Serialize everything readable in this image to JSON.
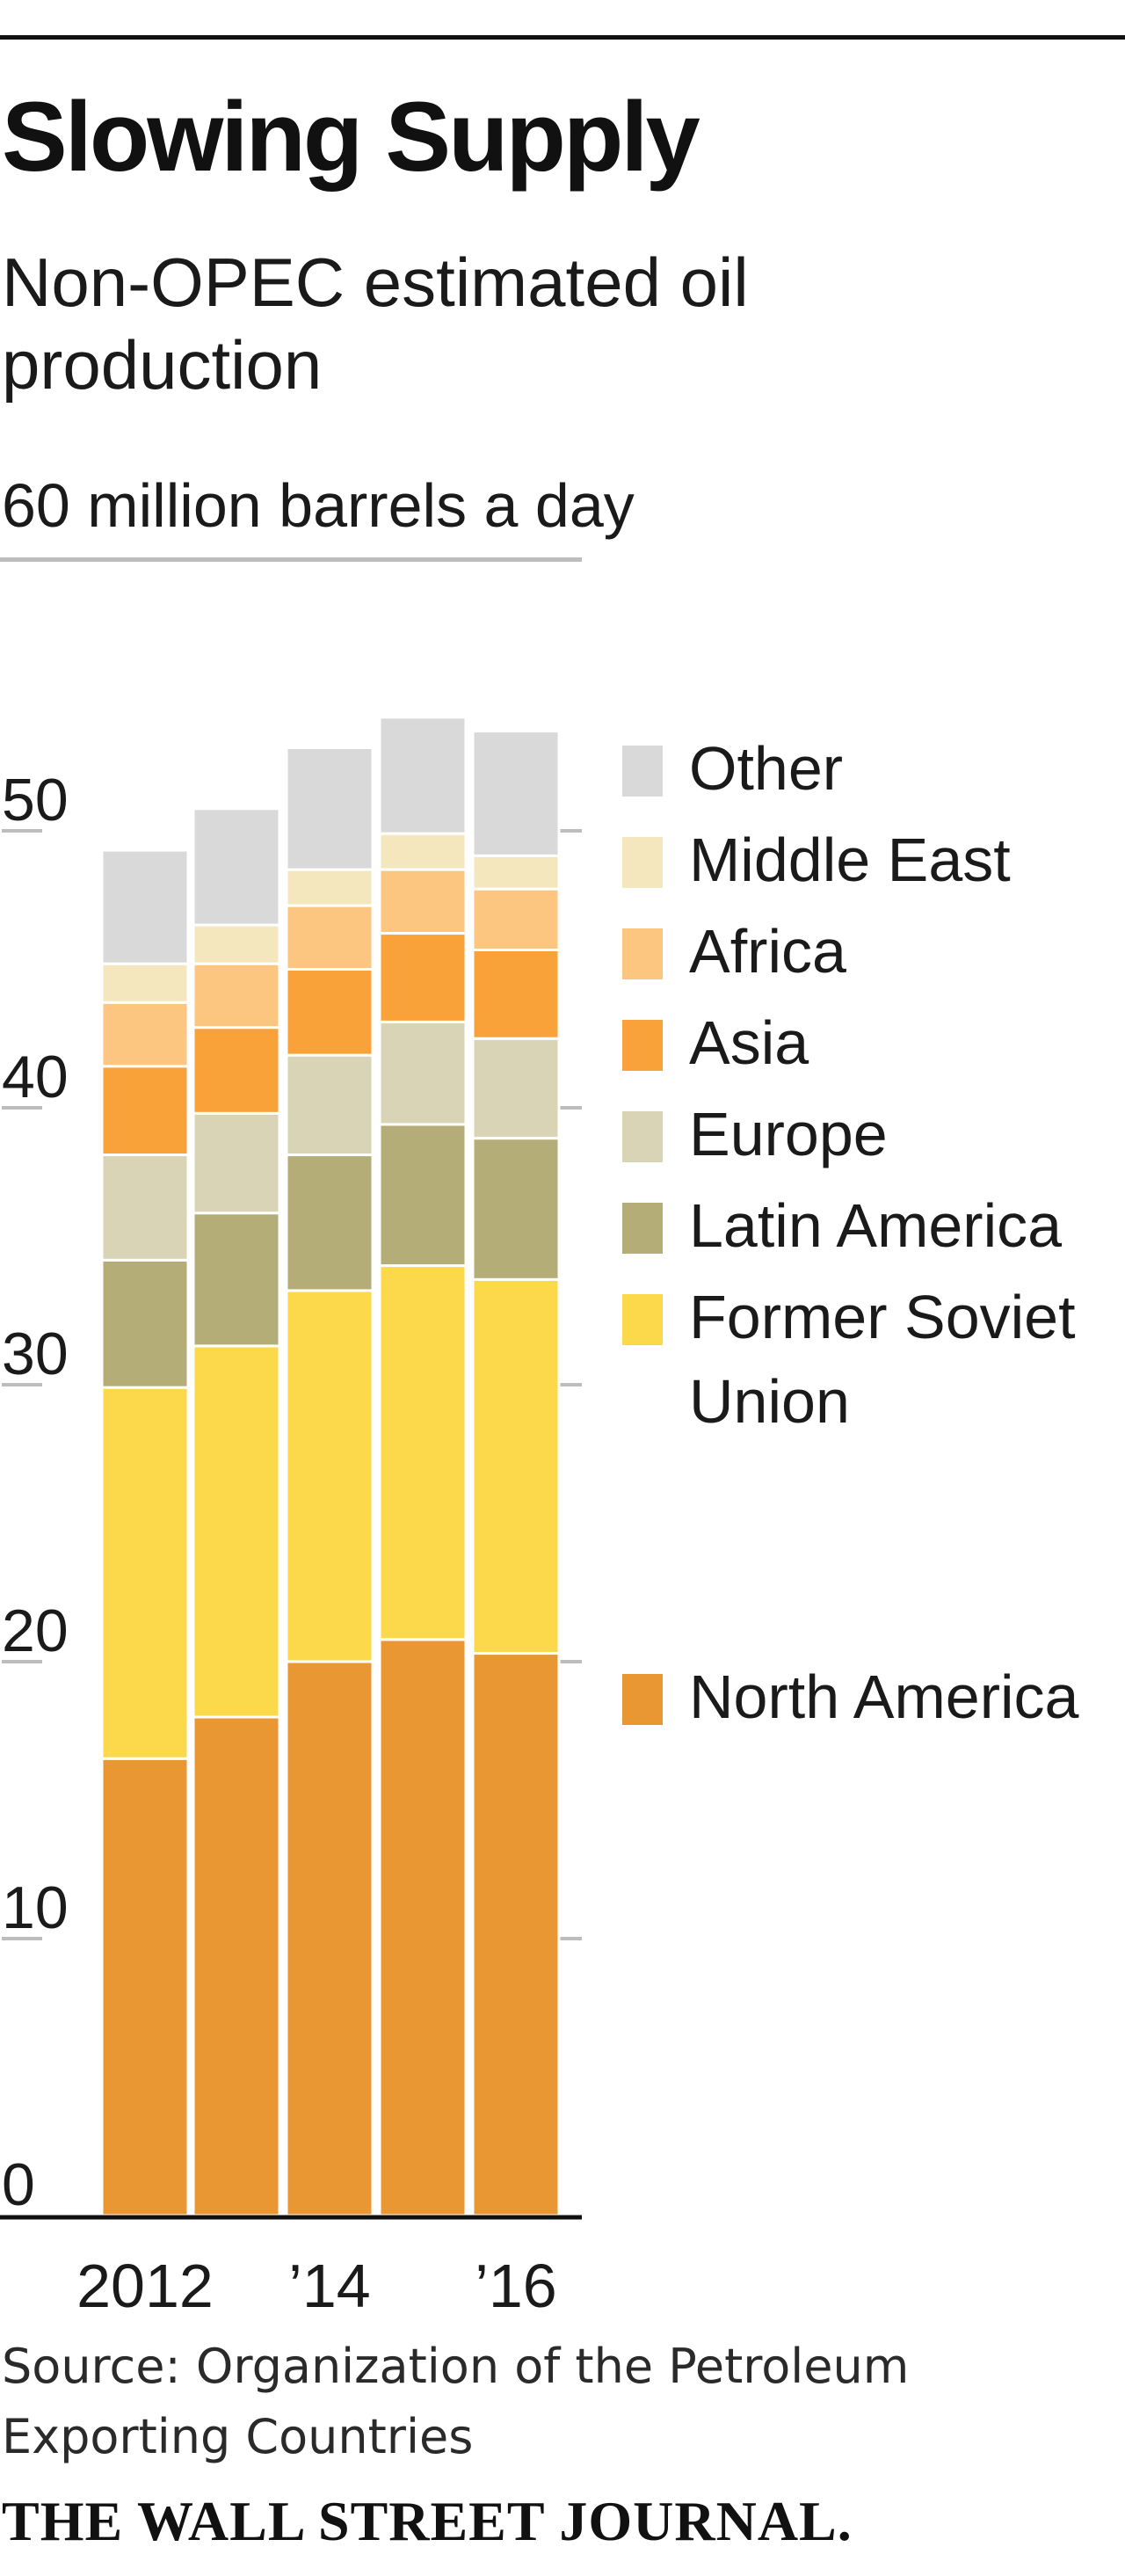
{
  "header": {
    "title": "Slowing Supply",
    "subtitle": "Non-OPEC estimated oil production",
    "unit_label": "60 million barrels a day"
  },
  "footer": {
    "source": "Source: Organization of the Petroleum Exporting Countries",
    "publisher": "THE WALL STREET JOURNAL."
  },
  "chart_data": {
    "type": "bar",
    "stacked": true,
    "title": "Slowing Supply",
    "subtitle": "Non-OPEC estimated oil production",
    "ylabel": "60 million barrels a day",
    "xlabel": "",
    "categories": [
      "2012",
      "2013",
      "2014",
      "2015",
      "2016"
    ],
    "x_tick_labels": [
      "2012",
      "",
      "’14",
      "",
      "’16"
    ],
    "ylim": [
      0,
      60
    ],
    "yticks": [
      0,
      10,
      20,
      30,
      40,
      50
    ],
    "grid": false,
    "legend_position": "right",
    "series": [
      {
        "name": "North America",
        "color": "#e89733",
        "values": [
          16.5,
          18.0,
          20.0,
          20.8,
          20.3
        ]
      },
      {
        "name": "Former Soviet Union",
        "color": "#fcd94b",
        "values": [
          13.4,
          13.4,
          13.4,
          13.5,
          13.5
        ]
      },
      {
        "name": "Latin America",
        "color": "#b5ad77",
        "values": [
          4.6,
          4.8,
          4.9,
          5.1,
          5.1
        ]
      },
      {
        "name": "Europe",
        "color": "#d9d4b5",
        "values": [
          3.8,
          3.6,
          3.6,
          3.7,
          3.6
        ]
      },
      {
        "name": "Asia",
        "color": "#f9a239",
        "values": [
          3.2,
          3.1,
          3.1,
          3.2,
          3.2
        ]
      },
      {
        "name": "Africa",
        "color": "#fcc681",
        "values": [
          2.3,
          2.3,
          2.3,
          2.3,
          2.2
        ]
      },
      {
        "name": "Middle East",
        "color": "#f4e6bd",
        "values": [
          1.4,
          1.4,
          1.3,
          1.3,
          1.2
        ]
      },
      {
        "name": "Other",
        "color": "#d9d9d9",
        "values": [
          4.1,
          4.2,
          4.4,
          4.2,
          4.5
        ]
      }
    ]
  }
}
